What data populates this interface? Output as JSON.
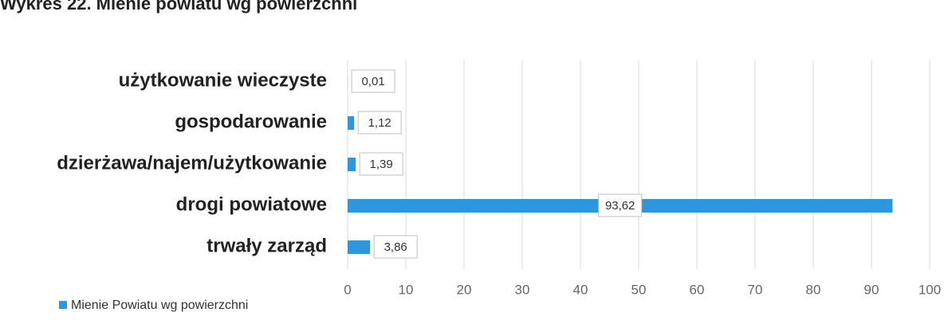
{
  "chart_data": {
    "type": "bar",
    "orientation": "horizontal",
    "title": "Wykres 22. Mienie powiatu wg powierzchni",
    "categories": [
      "użytkowanie wieczyste",
      "gospodarowanie",
      "dzierżawa/najem/użytkowanie",
      "drogi powiatowe",
      "trwały zarząd"
    ],
    "series": [
      {
        "name": "Mienie Powiatu wg powierzchni",
        "color": "#2e96dc",
        "values": [
          0.01,
          1.12,
          1.39,
          93.62,
          3.86
        ],
        "value_labels": [
          "0,01",
          "1,12",
          "1,39",
          "93,62",
          "3,86"
        ]
      }
    ],
    "xlim": [
      0,
      100
    ],
    "xticks": [
      0,
      10,
      20,
      30,
      40,
      50,
      60,
      70,
      80,
      90,
      100
    ],
    "grid": true,
    "legend": "bottom-left"
  }
}
